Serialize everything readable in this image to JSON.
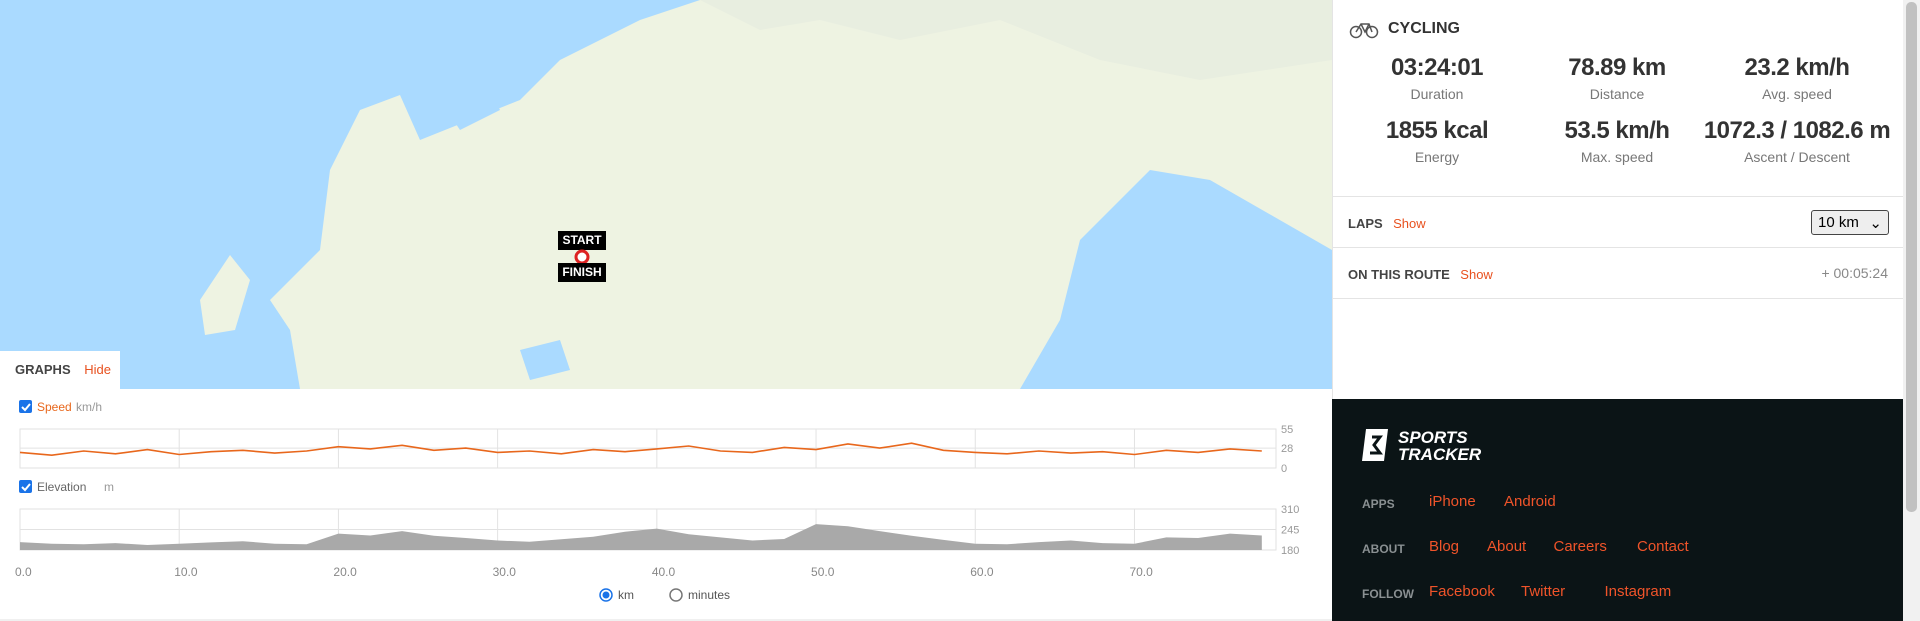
{
  "map": {
    "start": "START",
    "finish": "FINISH"
  },
  "activity": {
    "type": "CYCLING",
    "stats": [
      {
        "value": "03:24:01",
        "label": "Duration"
      },
      {
        "value": "78.89 km",
        "label": "Distance"
      },
      {
        "value": "23.2 km/h",
        "label": "Avg. speed"
      },
      {
        "value": "1855 kcal",
        "label": "Energy"
      },
      {
        "value": "53.5 km/h",
        "label": "Max. speed"
      },
      {
        "value": "1072.3 / 1082.6 m",
        "label": "Ascent / Descent"
      }
    ]
  },
  "laps": {
    "label": "LAPS",
    "action": "Show",
    "select": "10 km"
  },
  "route": {
    "label": "ON THIS ROUTE",
    "action": "Show",
    "time": "+ 00:05:24"
  },
  "graphs": {
    "title": "GRAPHS",
    "action": "Hide",
    "xlim": [
      0,
      78.89
    ],
    "xticks": [
      {
        "value": 0,
        "label": "0.0"
      },
      {
        "value": 10,
        "label": "10.0"
      },
      {
        "value": 20,
        "label": "20.0"
      },
      {
        "value": 30,
        "label": "30.0"
      },
      {
        "value": 40,
        "label": "40.0"
      },
      {
        "value": 50,
        "label": "50.0"
      },
      {
        "value": 60,
        "label": "60.0"
      },
      {
        "value": 70,
        "label": "70.0"
      }
    ],
    "x": [
      0,
      2,
      4,
      6,
      8,
      10,
      12,
      14,
      16,
      18,
      20,
      22,
      24,
      26,
      28,
      30,
      32,
      34,
      36,
      38,
      40,
      42,
      44,
      46,
      48,
      50,
      52,
      54,
      56,
      58,
      60,
      62,
      64,
      66,
      68,
      70,
      72,
      74,
      76,
      78
    ],
    "charts": [
      {
        "type": "line",
        "name": "Speed",
        "unit": "km/h",
        "color": "#e8671c",
        "ylim": [
          0,
          55
        ],
        "yticks": [
          55,
          28,
          0
        ],
        "values": [
          22,
          18,
          24,
          20,
          26,
          19,
          23,
          25,
          21,
          24,
          30,
          27,
          32,
          25,
          28,
          22,
          24,
          20,
          26,
          23,
          27,
          31,
          24,
          22,
          29,
          26,
          34,
          28,
          35,
          25,
          22,
          20,
          24,
          21,
          23,
          19,
          25,
          22,
          27,
          24
        ]
      },
      {
        "type": "area",
        "name": "Elevation",
        "unit": "m",
        "color": "#a9a9a9",
        "ylim": [
          180,
          310
        ],
        "yticks": [
          310,
          245,
          180
        ],
        "values": [
          205,
          200,
          198,
          202,
          196,
          200,
          204,
          208,
          200,
          198,
          232,
          226,
          240,
          225,
          218,
          210,
          206,
          214,
          222,
          238,
          248,
          230,
          220,
          210,
          215,
          262,
          255,
          240,
          225,
          212,
          200,
          198,
          205,
          210,
          202,
          200,
          220,
          218,
          232,
          226
        ]
      }
    ],
    "units": [
      "km",
      "minutes"
    ]
  },
  "footer": {
    "brand": [
      "SPORTS",
      "TRACKER"
    ],
    "rows": [
      {
        "label": "APPS",
        "links": [
          "iPhone",
          "Android"
        ]
      },
      {
        "label": "ABOUT",
        "links": [
          "Blog",
          "About",
          "Careers",
          "Contact"
        ]
      },
      {
        "label": "FOLLOW",
        "links": [
          "Facebook",
          "Twitter",
          "Instagram"
        ]
      }
    ]
  }
}
